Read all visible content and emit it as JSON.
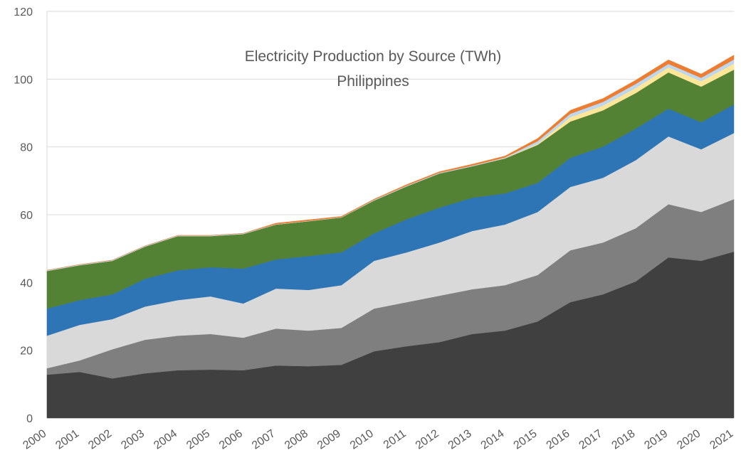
{
  "chart_data": {
    "type": "stacked_area",
    "title": "Electricity Production by Source (TWh)",
    "subtitle": "Philippines",
    "categories": [
      "2000",
      "2001",
      "2002",
      "2003",
      "2004",
      "2005",
      "2006",
      "2007",
      "2008",
      "2009",
      "2010",
      "2011",
      "2012",
      "2013",
      "2014",
      "2015",
      "2016",
      "2017",
      "2018",
      "2019",
      "2020",
      "2021"
    ],
    "series": [
      {
        "color": "#404040",
        "values": [
          12.8,
          13.6,
          11.7,
          13.2,
          14.1,
          14.3,
          14.1,
          15.5,
          15.3,
          15.7,
          19.7,
          21.2,
          22.4,
          24.8,
          25.8,
          28.5,
          34.2,
          36.5,
          40.3,
          47.4,
          46.4,
          49.1
        ]
      },
      {
        "color": "#7f7f7f",
        "values": [
          1.9,
          3.4,
          8.6,
          9.9,
          10.2,
          10.5,
          9.6,
          10.9,
          10.5,
          10.9,
          12.6,
          13.0,
          13.7,
          13.2,
          13.4,
          13.7,
          15.3,
          15.3,
          15.7,
          15.7,
          14.4,
          15.5
        ]
      },
      {
        "color": "#d9d9d9",
        "values": [
          9.6,
          10.5,
          8.9,
          9.8,
          10.5,
          11.1,
          10.1,
          11.8,
          12.0,
          12.6,
          14.1,
          14.7,
          15.7,
          17.2,
          17.9,
          18.6,
          18.7,
          19.1,
          20.1,
          20.0,
          18.5,
          19.5
        ]
      },
      {
        "color": "#2e75b6",
        "values": [
          8.0,
          7.3,
          7.3,
          8.2,
          8.8,
          8.6,
          10.3,
          8.6,
          10.0,
          9.7,
          8.1,
          9.8,
          10.3,
          9.8,
          9.2,
          8.6,
          8.6,
          9.2,
          9.3,
          8.2,
          8.0,
          8.4
        ]
      },
      {
        "color": "#548235",
        "values": [
          11.1,
          10.3,
          9.9,
          9.5,
          10.1,
          9.2,
          10.2,
          10.3,
          10.3,
          10.3,
          9.7,
          9.7,
          10.1,
          9.3,
          10.3,
          11.2,
          10.7,
          10.7,
          10.5,
          10.7,
          10.5,
          10.3
        ]
      },
      {
        "color": "#ffe699",
        "values": [
          0,
          0,
          0,
          0,
          0,
          0,
          0,
          0,
          0,
          0,
          0,
          0,
          0,
          0,
          0.1,
          0.3,
          1.3,
          1.4,
          1.5,
          1.5,
          1.6,
          1.8
        ]
      },
      {
        "color": "#bdd7ee",
        "values": [
          0.2,
          0.2,
          0.2,
          0.2,
          0.2,
          0.2,
          0.2,
          0.1,
          0.1,
          0.1,
          0.2,
          0.2,
          0.2,
          0.2,
          0.2,
          0.8,
          1.0,
          1.1,
          1.2,
          1.0,
          1.0,
          1.2
        ]
      },
      {
        "color": "#ed7d31",
        "values": [
          0,
          0,
          0,
          0,
          0,
          0,
          0,
          0.3,
          0.3,
          0.2,
          0.2,
          0.3,
          0.3,
          0.4,
          0.4,
          0.8,
          1.0,
          1.0,
          1.1,
          1.2,
          1.1,
          1.3
        ]
      }
    ],
    "ylim": [
      0,
      120
    ],
    "yticks": [
      0,
      20,
      40,
      60,
      80,
      100,
      120
    ],
    "grid": true
  }
}
